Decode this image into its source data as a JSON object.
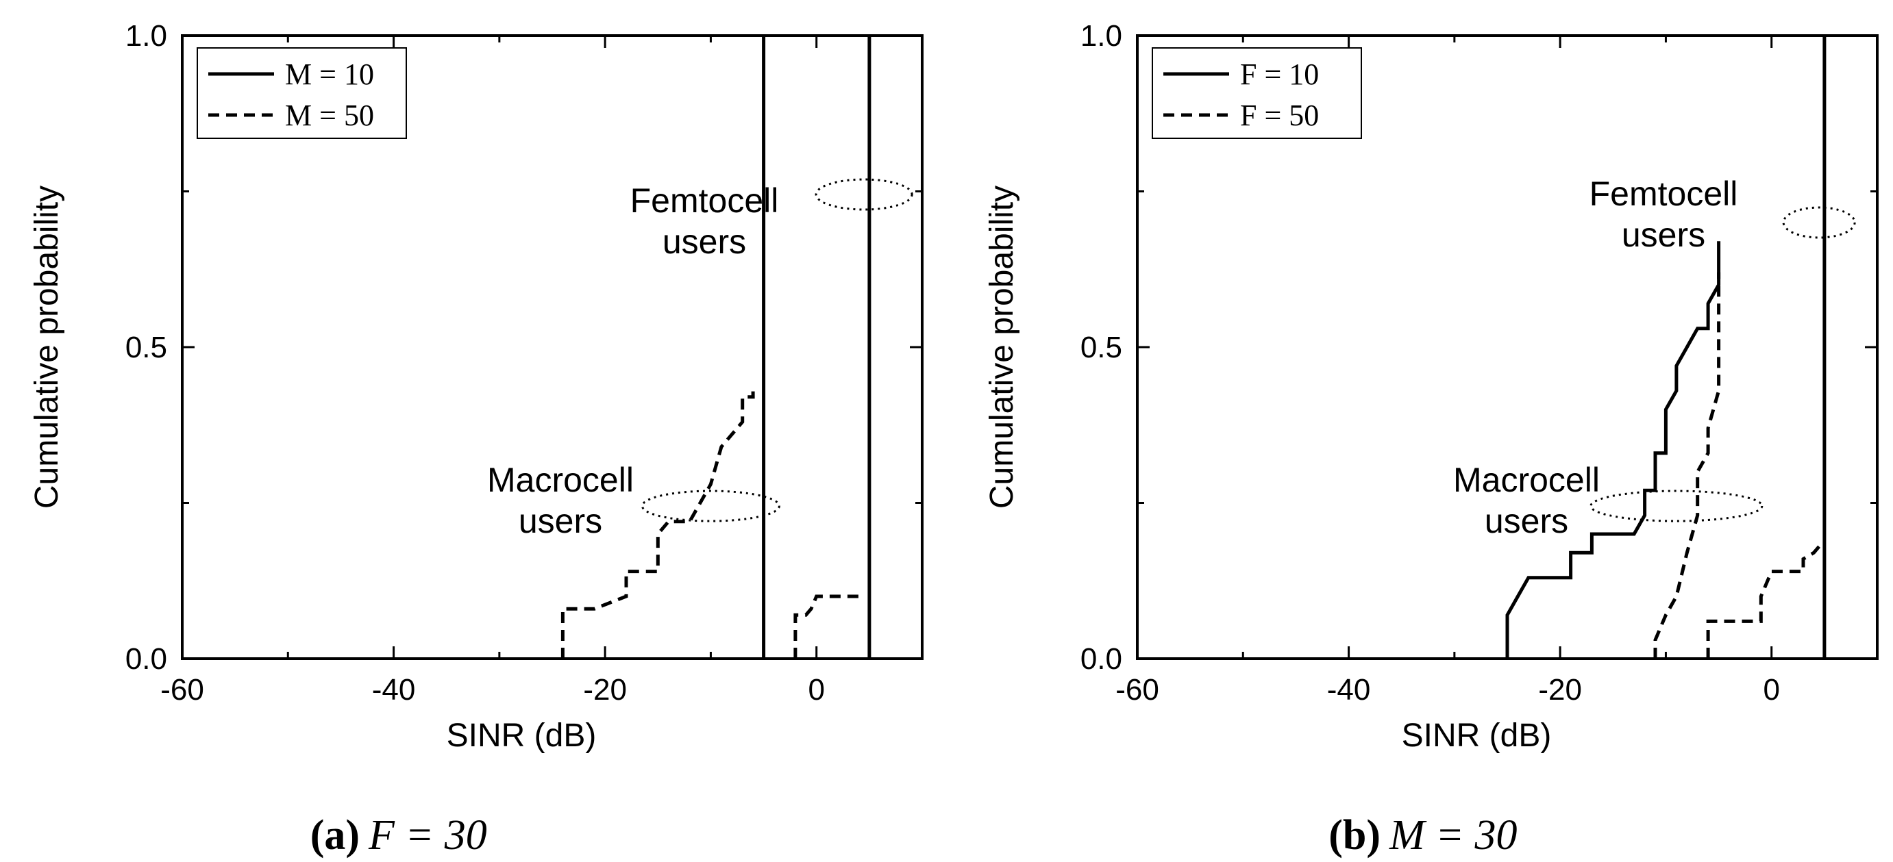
{
  "chart_data": [
    {
      "type": "line",
      "caption": {
        "letter": "(a)",
        "text": "F = 30"
      },
      "xlabel": "SINR (dB)",
      "ylabel": "Cumulative probability",
      "xlim": [
        -60,
        10
      ],
      "ylim": [
        0,
        1
      ],
      "xticks": [
        "-60",
        "-40",
        "-20",
        "0"
      ],
      "yticks": [
        "0.0",
        "0.5",
        "1.0"
      ],
      "legend": {
        "position": "top-left",
        "entries": [
          {
            "label": "M = 10",
            "style": "solid"
          },
          {
            "label": "M = 50",
            "style": "dashed"
          }
        ]
      },
      "annotations": [
        {
          "lines": [
            "Femtocell",
            "users"
          ],
          "ellipse_center": [
            4.5,
            0.745
          ]
        },
        {
          "lines": [
            "Macrocell",
            "users"
          ],
          "ellipse_center": [
            -10,
            0.245
          ]
        }
      ],
      "series": [
        {
          "name": "M = 10 macrocell",
          "style": "solid",
          "x": [
            -5,
            -5
          ],
          "y": [
            0,
            1
          ]
        },
        {
          "name": "M = 10 femtocell",
          "style": "solid",
          "x": [
            5,
            5
          ],
          "y": [
            0,
            1
          ]
        },
        {
          "name": "M = 50 macrocell",
          "style": "dashed",
          "x": [
            -24,
            -24,
            -21,
            -18,
            -18,
            -15,
            -15,
            -14,
            -12,
            -10,
            -9,
            -8,
            -7,
            -7,
            -6,
            -6
          ],
          "y": [
            0,
            0.08,
            0.08,
            0.1,
            0.14,
            0.14,
            0.2,
            0.22,
            0.22,
            0.28,
            0.34,
            0.36,
            0.38,
            0.42,
            0.42,
            0.44
          ]
        },
        {
          "name": "M = 50 femtocell",
          "style": "dashed",
          "x": [
            -2,
            -2,
            -1,
            -0.5,
            0,
            4,
            4
          ],
          "y": [
            0,
            0.07,
            0.07,
            0.08,
            0.1,
            0.1,
            0.1
          ]
        }
      ]
    },
    {
      "type": "line",
      "caption": {
        "letter": "(b)",
        "text": "M = 30"
      },
      "xlabel": "SINR (dB)",
      "ylabel": "Cumulative probability",
      "xlim": [
        -60,
        10
      ],
      "ylim": [
        0,
        1
      ],
      "xticks": [
        "-60",
        "-40",
        "-20",
        "0"
      ],
      "yticks": [
        "0.0",
        "0.5",
        "1.0"
      ],
      "legend": {
        "position": "top-left",
        "entries": [
          {
            "label": "F = 10",
            "style": "solid"
          },
          {
            "label": "F = 50",
            "style": "dashed"
          }
        ]
      },
      "annotations": [
        {
          "lines": [
            "Femtocell",
            "users"
          ],
          "ellipse_center": [
            4.5,
            0.7
          ]
        },
        {
          "lines": [
            "Macrocell",
            "users"
          ],
          "ellipse_center": [
            -9,
            0.245
          ]
        }
      ],
      "series": [
        {
          "name": "F = 10 macrocell",
          "style": "solid",
          "x": [
            -25,
            -25,
            -24,
            -23,
            -19,
            -19,
            -17,
            -17,
            -13,
            -12,
            -12,
            -11,
            -11,
            -10,
            -10,
            -9,
            -9,
            -8,
            -7,
            -6,
            -6,
            -5,
            -5
          ],
          "y": [
            0,
            0.07,
            0.1,
            0.13,
            0.13,
            0.17,
            0.17,
            0.2,
            0.2,
            0.23,
            0.27,
            0.27,
            0.33,
            0.33,
            0.4,
            0.43,
            0.47,
            0.5,
            0.53,
            0.53,
            0.57,
            0.6,
            0.67
          ]
        },
        {
          "name": "F = 10 femtocell",
          "style": "solid",
          "x": [
            5,
            5
          ],
          "y": [
            0,
            1
          ]
        },
        {
          "name": "F = 50 macrocell",
          "style": "dashed",
          "x": [
            -11,
            -11,
            -10,
            -9,
            -8,
            -7,
            -7,
            -6,
            -6,
            -5,
            -5
          ],
          "y": [
            0,
            0.03,
            0.07,
            0.1,
            0.17,
            0.23,
            0.3,
            0.33,
            0.37,
            0.43,
            0.62
          ]
        },
        {
          "name": "F = 50 femtocell",
          "style": "dashed",
          "x": [
            -6,
            -6,
            -1,
            -1,
            0,
            3,
            3,
            4,
            4.5
          ],
          "y": [
            0,
            0.06,
            0.06,
            0.1,
            0.14,
            0.14,
            0.16,
            0.17,
            0.18
          ]
        }
      ]
    }
  ]
}
